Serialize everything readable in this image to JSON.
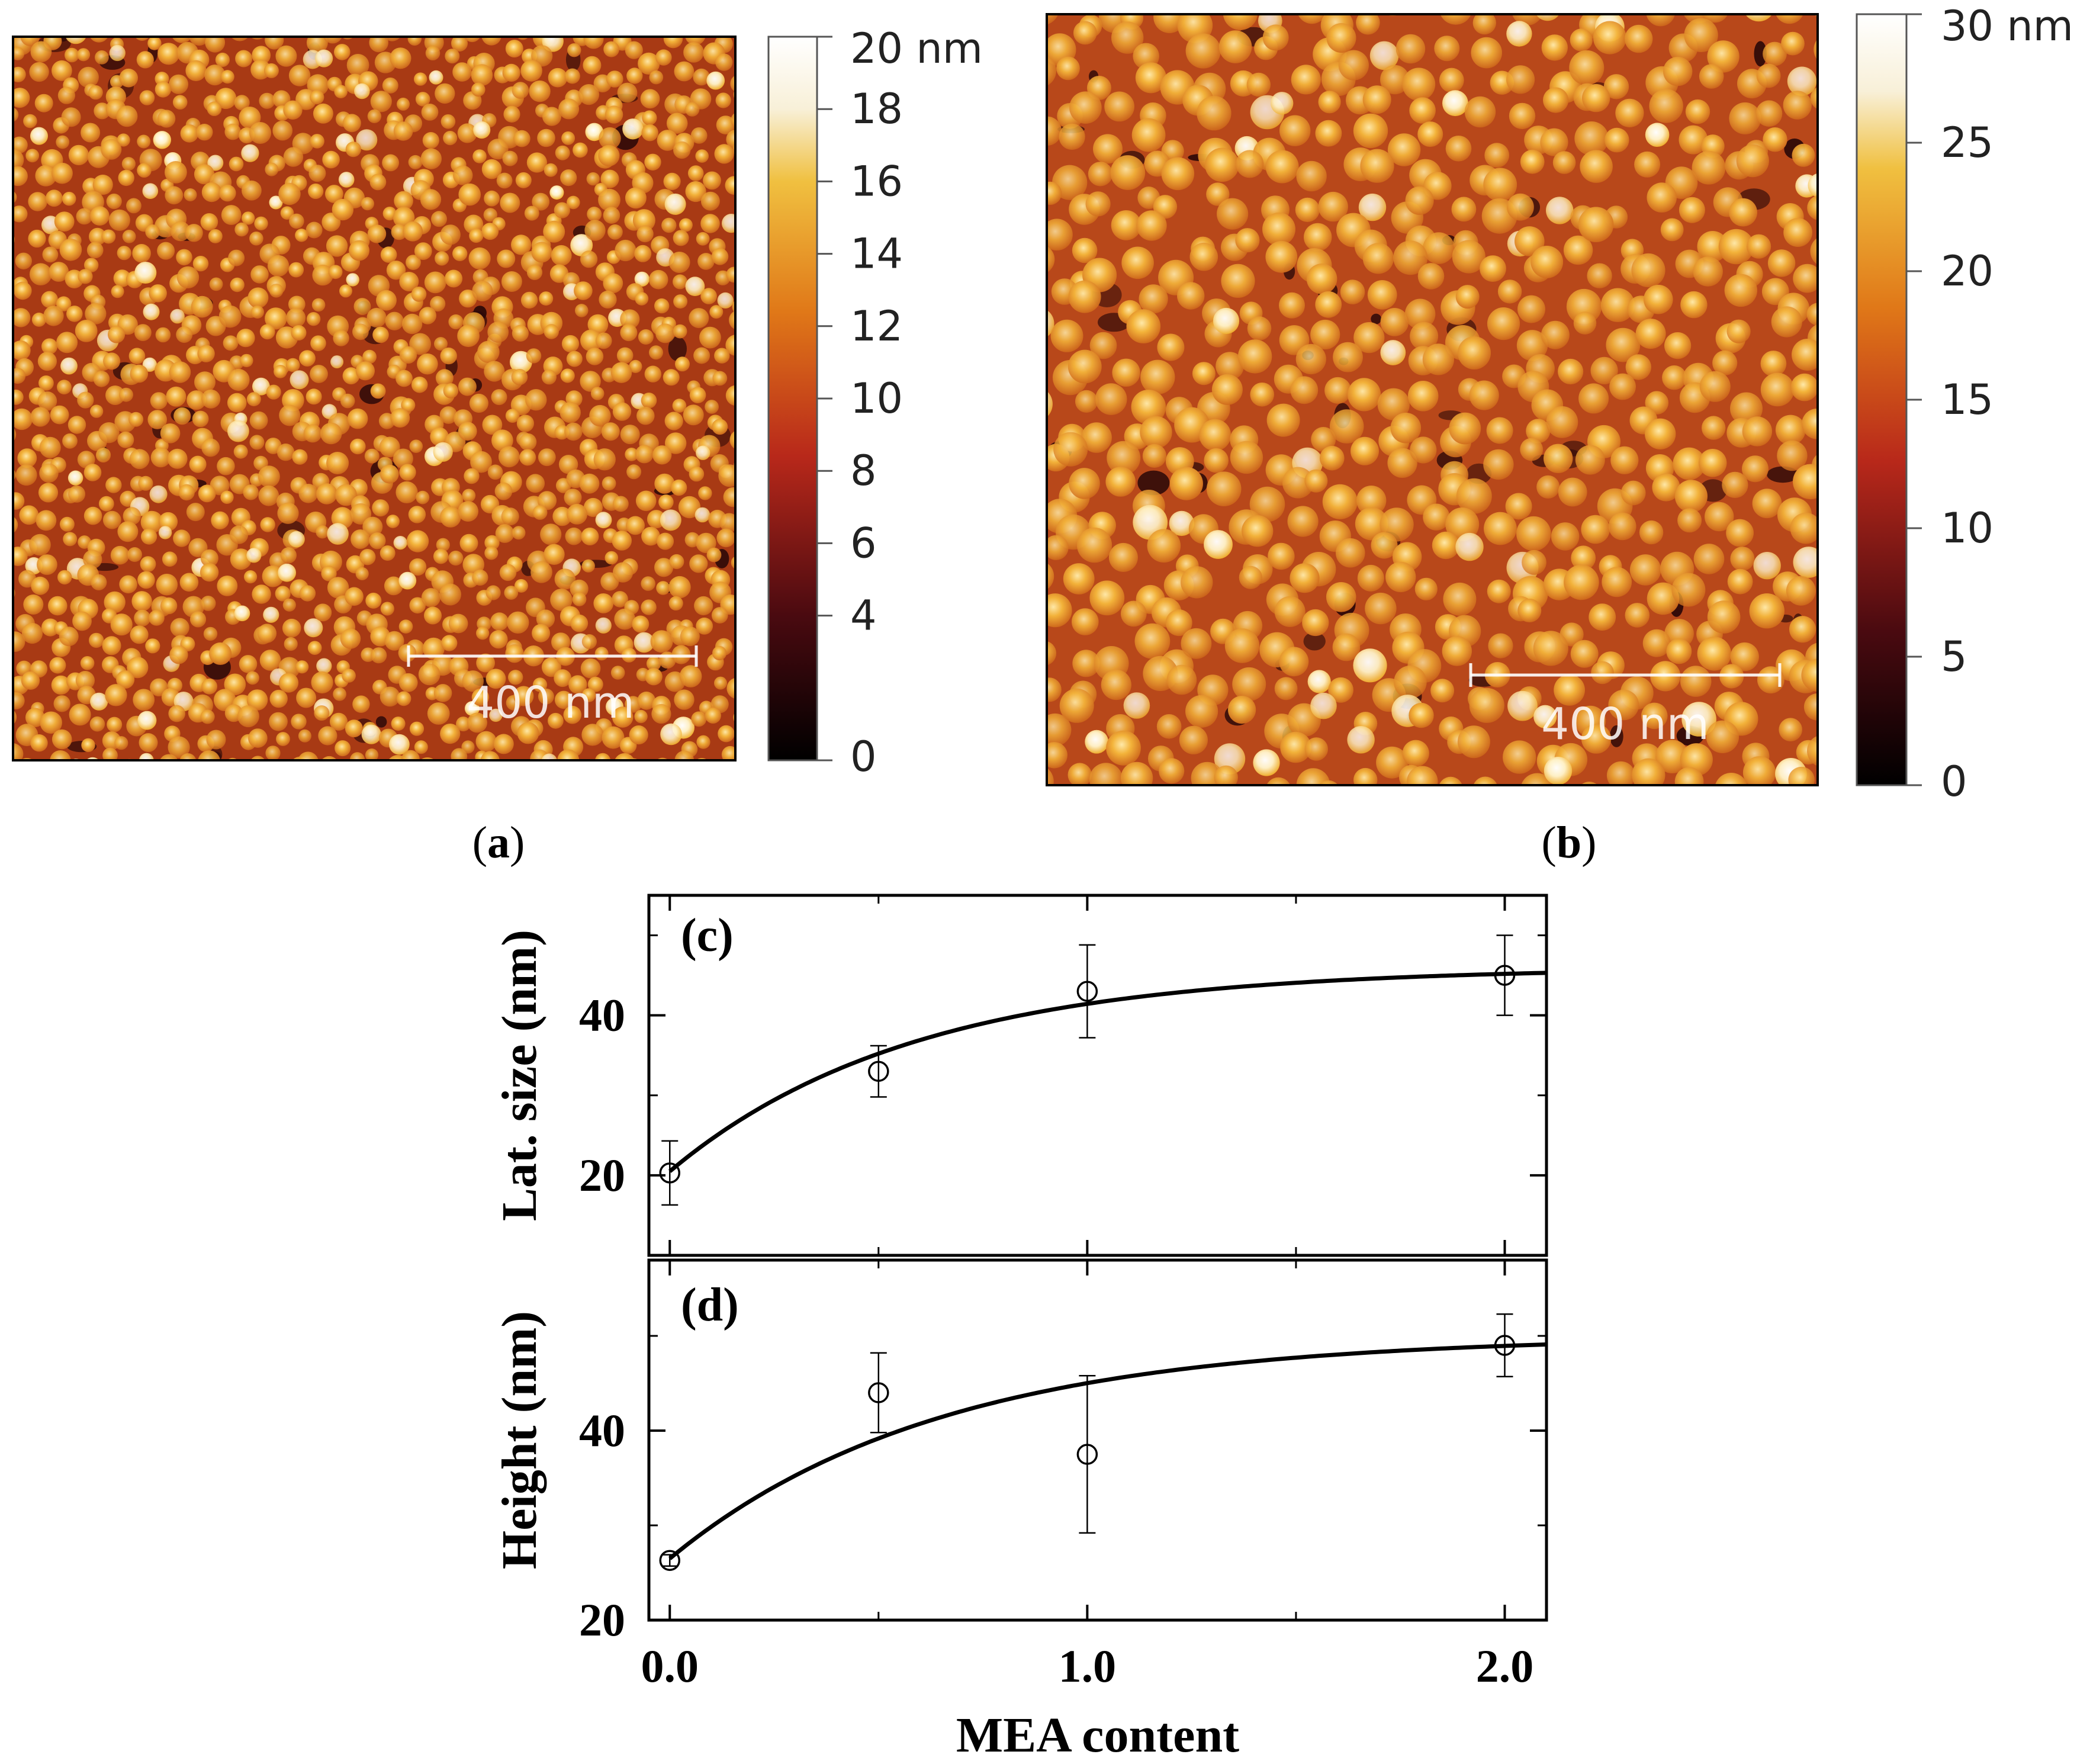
{
  "figure": {
    "panel_a_label": "a",
    "panel_b_label": "b",
    "open_paren": "(",
    "close_paren": ")"
  },
  "afm": [
    {
      "id": "a",
      "scale_bar_label": "400 nm",
      "colorbar_ticks": [
        "20 nm",
        "18",
        "16",
        "14",
        "12",
        "10",
        "8",
        "6",
        "4",
        "0"
      ],
      "colorbar_tick_values": [
        20,
        18,
        16,
        14,
        12,
        10,
        8,
        6,
        4,
        0
      ],
      "colorbar_max": 20,
      "grain_density": "fine"
    },
    {
      "id": "b",
      "scale_bar_label": "400 nm",
      "colorbar_ticks": [
        "30 nm",
        "25",
        "20",
        "15",
        "10",
        "5",
        "0"
      ],
      "colorbar_tick_values": [
        30,
        25,
        20,
        15,
        10,
        5,
        0
      ],
      "colorbar_max": 30,
      "grain_density": "coarse"
    }
  ],
  "colors": {
    "afm_dark": "#1a0505",
    "afm_mid": "#c8501a",
    "afm_bright": "#f0b030",
    "afm_white": "#ffffff",
    "line": "#000000"
  },
  "chart_data": [
    {
      "type": "scatter",
      "panel_label": "(c)",
      "ylabel": "Lat. size (nm)",
      "xlabel": "",
      "xlim": [
        -0.05,
        2.1
      ],
      "ylim": [
        10,
        55
      ],
      "x_ticks": [
        0.0,
        1.0,
        2.0
      ],
      "y_ticks": [
        20,
        40
      ],
      "y_tick_labels": [
        "20",
        "40"
      ],
      "x": [
        0.0,
        0.5,
        1.0,
        2.0
      ],
      "y": [
        20.3,
        33.0,
        43.0,
        45.0
      ],
      "yerr": [
        4.0,
        3.2,
        5.8,
        5.0
      ],
      "fit": {
        "model": "exponential_rise",
        "y0": 20.5,
        "ymax": 46.0,
        "k": 1.72
      }
    },
    {
      "type": "scatter",
      "panel_label": "(d)",
      "ylabel": "Height (nm)",
      "xlabel": "MEA content",
      "xlim": [
        -0.05,
        2.1
      ],
      "ylim": [
        20,
        58
      ],
      "x_ticks": [
        0.0,
        1.0,
        2.0
      ],
      "x_tick_labels": [
        "0.0",
        "1.0",
        "2.0"
      ],
      "y_ticks": [
        20,
        40
      ],
      "y_tick_labels": [
        "20",
        "40"
      ],
      "x": [
        0.0,
        0.5,
        1.0,
        2.0
      ],
      "y": [
        26.3,
        44.0,
        37.5,
        49.0
      ],
      "yerr": [
        0.6,
        4.2,
        8.3,
        3.3
      ],
      "fit": {
        "model": "exponential_rise",
        "y0": 26.5,
        "ymax": 50.0,
        "k": 1.55
      }
    }
  ]
}
